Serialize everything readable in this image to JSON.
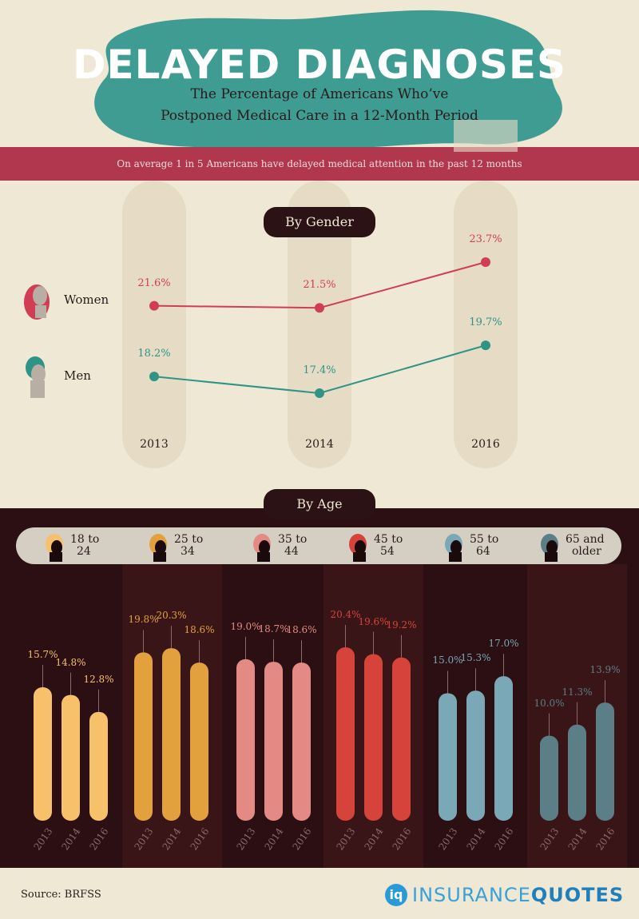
{
  "title": "DELAYED DIAGNOSES",
  "subtitle_line1": "The Percentage of Americans Who’ve",
  "subtitle_line2": "Postponed Medical Care in a 12-Month Period",
  "banner": "On average 1 in 5 Americans have delayed medical attention in the past 12 months",
  "gender_section": "By Gender",
  "age_section": "By Age",
  "source": "Source: BRFSS",
  "brand_insurance": "INSURANCE",
  "brand_quotes": "QUOTES",
  "brand_icon": "iq",
  "colors": {
    "teal": "#3f9c93",
    "banner": "#b1374f",
    "dark": "#2b0f12",
    "women": "#d03d55",
    "men": "#2f9386"
  },
  "chart_data": [
    {
      "type": "line",
      "title": "By Gender",
      "x": [
        "2013",
        "2014",
        "2016"
      ],
      "series": [
        {
          "name": "Women",
          "values": [
            21.6,
            21.5,
            23.7
          ],
          "labels": [
            "21.6%",
            "21.5%",
            "23.7%"
          ],
          "color": "#d03d55",
          "icon": "woman-head-icon"
        },
        {
          "name": "Men",
          "values": [
            18.2,
            17.4,
            19.7
          ],
          "labels": [
            "18.2%",
            "17.4%",
            "19.7%"
          ],
          "color": "#2f9386",
          "icon": "man-head-icon"
        }
      ]
    },
    {
      "type": "bar",
      "title": "By Age",
      "years": [
        "2013",
        "2014",
        "2016"
      ],
      "groups": [
        {
          "name_line1": "18 to",
          "name_line2": "24",
          "values": [
            15.7,
            14.8,
            12.8
          ],
          "labels": [
            "15.7%",
            "14.8%",
            "12.8%"
          ],
          "color": "#f7c06b",
          "icon": "head-18-24-icon"
        },
        {
          "name_line1": "25 to",
          "name_line2": "34",
          "values": [
            19.8,
            20.3,
            18.6
          ],
          "labels": [
            "19.8%",
            "20.3%",
            "18.6%"
          ],
          "color": "#e2a13d",
          "icon": "head-25-34-icon"
        },
        {
          "name_line1": "35 to",
          "name_line2": "44",
          "values": [
            19.0,
            18.7,
            18.6
          ],
          "labels": [
            "19.0%",
            "18.7%",
            "18.6%"
          ],
          "color": "#e48a84",
          "icon": "head-35-44-icon"
        },
        {
          "name_line1": "45 to",
          "name_line2": "54",
          "values": [
            20.4,
            19.6,
            19.2
          ],
          "labels": [
            "20.4%",
            "19.6%",
            "19.2%"
          ],
          "color": "#d5433a",
          "icon": "head-45-54-icon"
        },
        {
          "name_line1": "55 to",
          "name_line2": "64",
          "values": [
            15.0,
            15.3,
            17.0
          ],
          "labels": [
            "15.0%",
            "15.3%",
            "17.0%"
          ],
          "color": "#7ba8b6",
          "icon": "head-55-64-icon"
        },
        {
          "name_line1": "65 and",
          "name_line2": "older",
          "values": [
            10.0,
            11.3,
            13.9
          ],
          "labels": [
            "10.0%",
            "11.3%",
            "13.9%"
          ],
          "color": "#5c7e86",
          "icon": "head-65-older-icon"
        }
      ]
    }
  ]
}
